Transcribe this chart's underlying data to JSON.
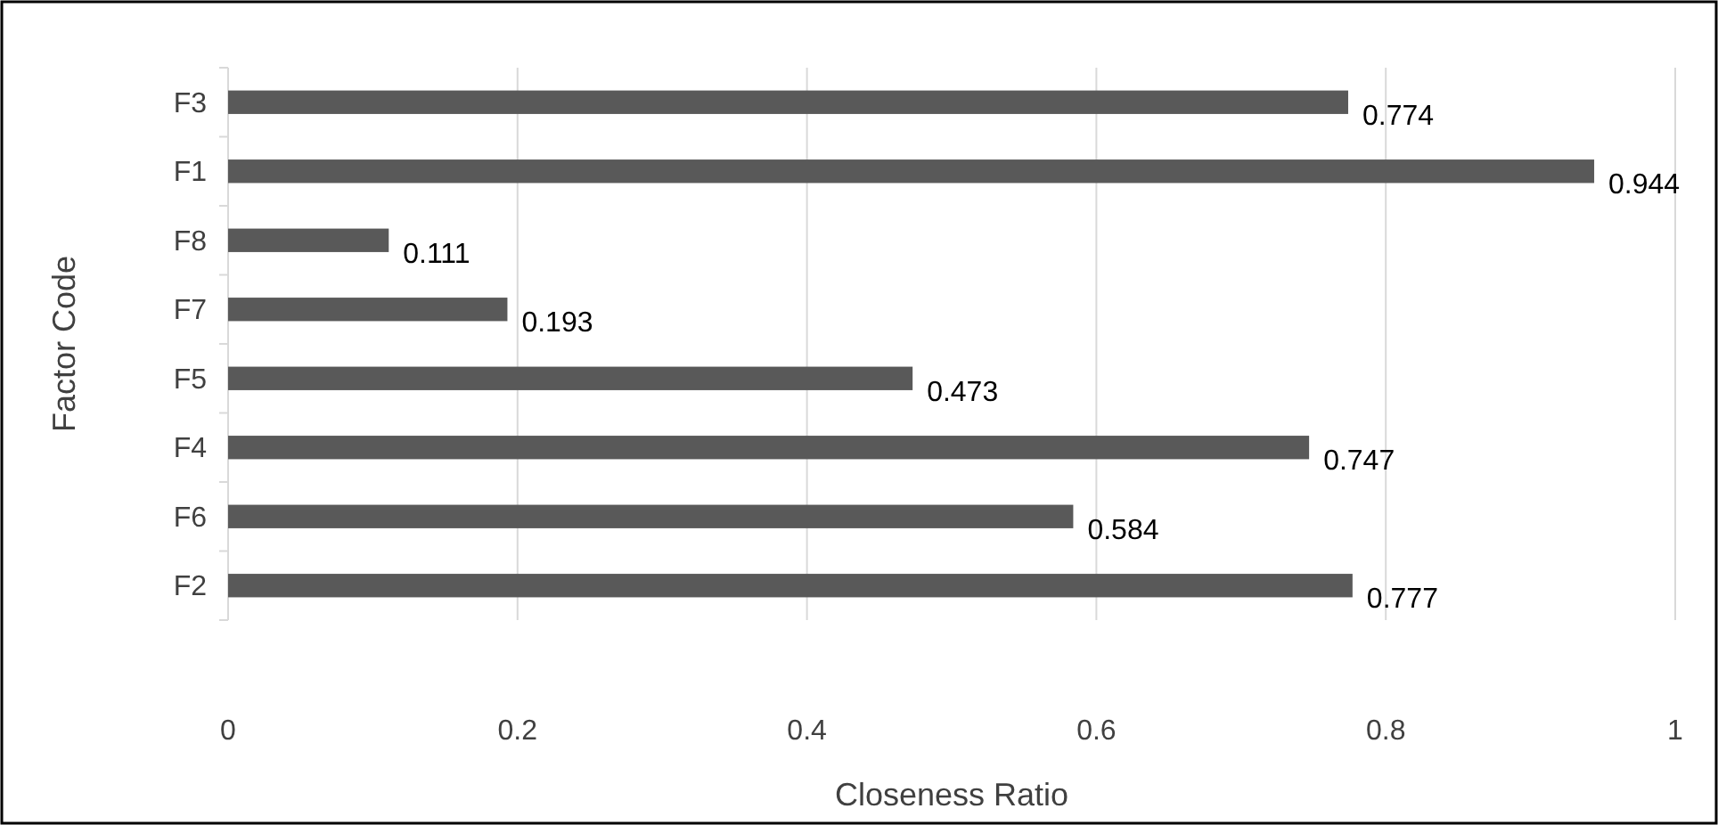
{
  "chart_data": {
    "type": "bar",
    "orientation": "horizontal",
    "xlabel": "Closeness Ratio",
    "ylabel": "Factor Code",
    "categories": [
      "F3",
      "F1",
      "F8",
      "F7",
      "F5",
      "F4",
      "F6",
      "F2"
    ],
    "values": [
      0.774,
      0.944,
      0.111,
      0.193,
      0.473,
      0.747,
      0.584,
      0.777
    ],
    "color": "#595959",
    "xlim": [
      0,
      1
    ],
    "xticks": [
      0,
      0.2,
      0.4,
      0.6,
      0.8,
      1
    ],
    "grid": "x",
    "data_labels": true
  }
}
